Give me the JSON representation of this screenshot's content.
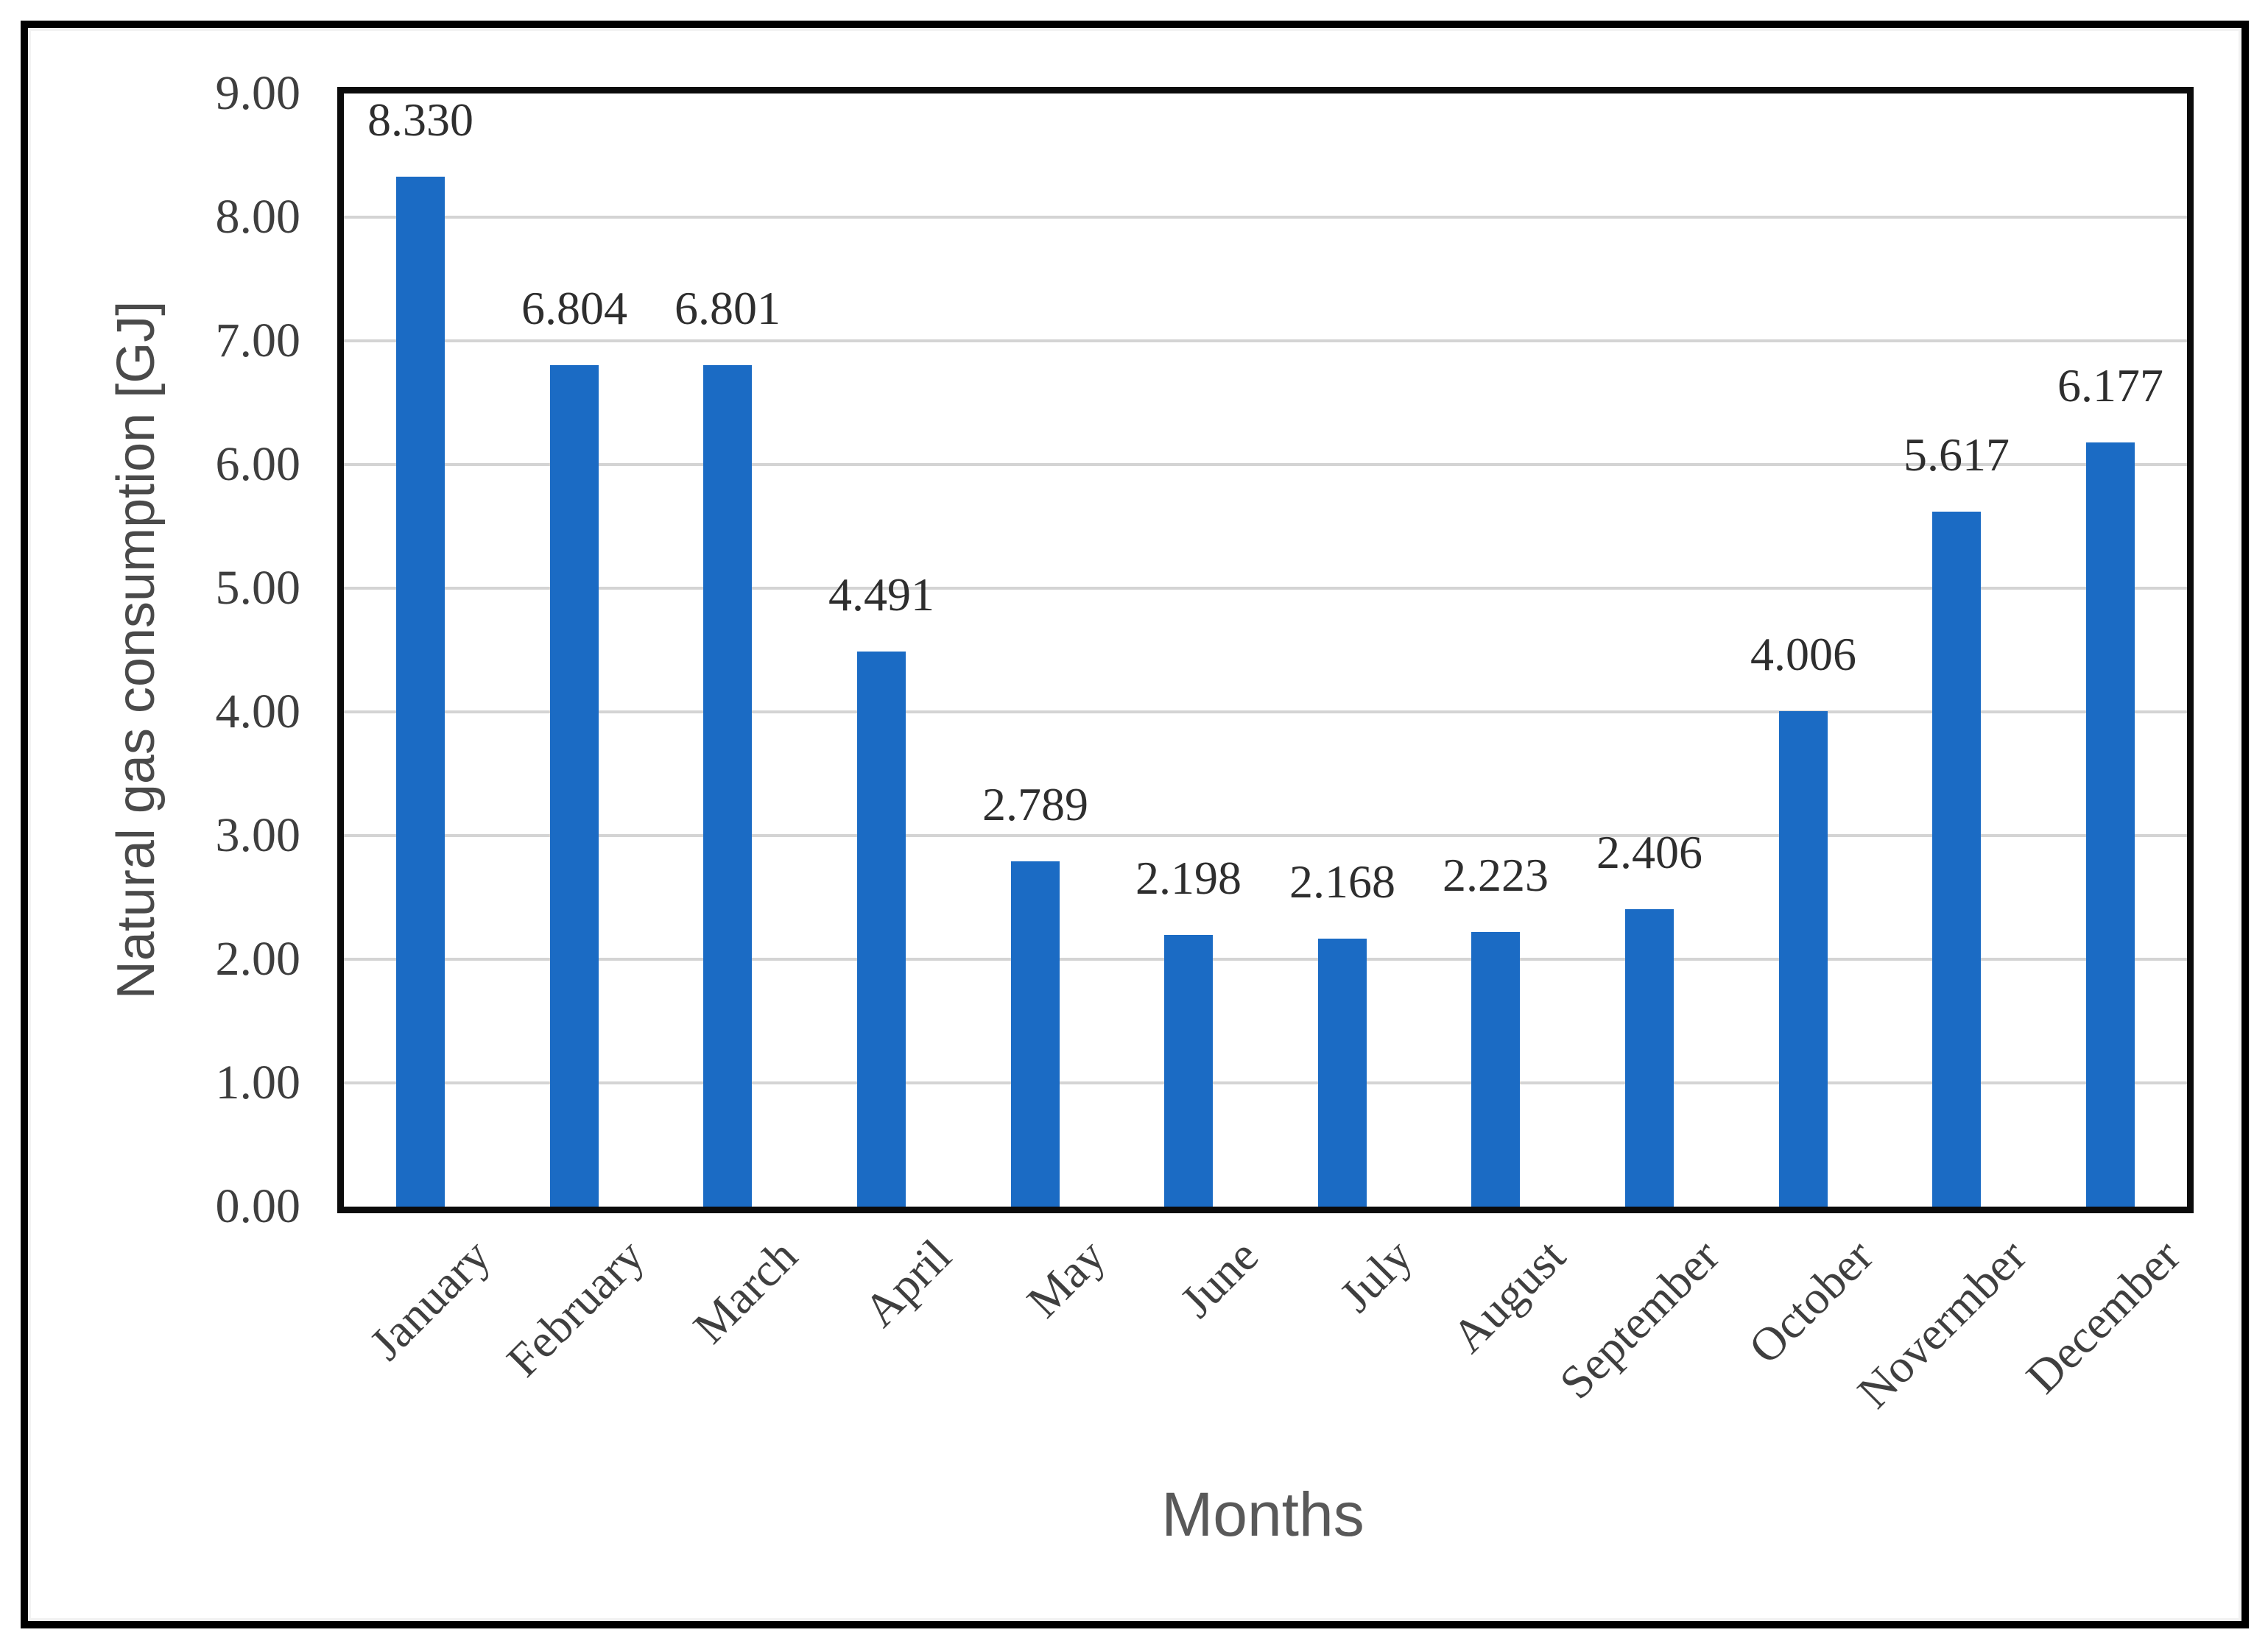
{
  "chart_data": {
    "type": "bar",
    "title": "",
    "categories": [
      "January",
      "February",
      "March",
      "April",
      "May",
      "June",
      "July",
      "August",
      "September",
      "October",
      "Novermber",
      "December"
    ],
    "values": [
      8.33,
      6.804,
      6.801,
      4.491,
      2.789,
      2.198,
      2.168,
      2.223,
      2.406,
      4.006,
      5.617,
      6.177
    ],
    "bar_value_labels": [
      "8.330",
      "6.804",
      "6.801",
      "4.491",
      "2.789",
      "2.198",
      "2.168",
      "2.223",
      "2.406",
      "4.006",
      "5.617",
      "6.177"
    ],
    "xlabel": "Months",
    "ylabel": "Natural gas consumption [GJ]",
    "ylim": [
      0,
      9
    ],
    "ytick_labels": [
      "0.00",
      "1.00",
      "2.00",
      "3.00",
      "4.00",
      "5.00",
      "6.00",
      "7.00",
      "8.00",
      "9.00"
    ],
    "grid": "horizontal-major",
    "legend": "none",
    "colors": {
      "bar_fill": "#1B6BC4",
      "gridline": "#D4D4D4",
      "plot_border": "#0B0B0B",
      "outer_frame": "#000000",
      "tick_text": "#3E3E3E",
      "bar_label_text": "#2E2E2E",
      "month_label_text": "#3F3F3F",
      "y_title_text": "#4A4A4A",
      "x_title_text": "#595959"
    }
  }
}
